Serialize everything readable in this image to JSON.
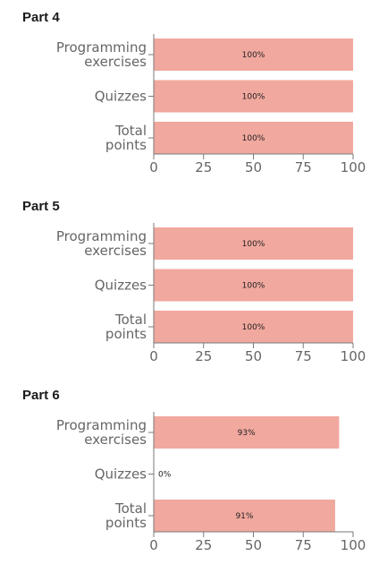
{
  "colors": {
    "bar": "#f1a89e",
    "axis": "#7a7a7a",
    "label": "#666666"
  },
  "chart_data": [
    {
      "type": "bar",
      "orientation": "horizontal",
      "title": "Part 4",
      "categories": [
        "Programming exercises",
        "Quizzes",
        "Total points"
      ],
      "values": [
        100,
        100,
        100
      ],
      "value_labels": [
        "100%",
        "100%",
        "100%"
      ],
      "xlim": [
        0,
        100
      ],
      "xticks": [
        "0",
        "25",
        "50",
        "75",
        "100"
      ],
      "xlabel": "",
      "ylabel": "",
      "grid": false
    },
    {
      "type": "bar",
      "orientation": "horizontal",
      "title": "Part 5",
      "categories": [
        "Programming exercises",
        "Quizzes",
        "Total points"
      ],
      "values": [
        100,
        100,
        100
      ],
      "value_labels": [
        "100%",
        "100%",
        "100%"
      ],
      "xlim": [
        0,
        100
      ],
      "xticks": [
        "0",
        "25",
        "50",
        "75",
        "100"
      ],
      "xlabel": "",
      "ylabel": "",
      "grid": false
    },
    {
      "type": "bar",
      "orientation": "horizontal",
      "title": "Part 6",
      "categories": [
        "Programming exercises",
        "Quizzes",
        "Total points"
      ],
      "values": [
        93,
        0,
        91
      ],
      "value_labels": [
        "93%",
        "0%",
        "91%"
      ],
      "xlim": [
        0,
        100
      ],
      "xticks": [
        "0",
        "25",
        "50",
        "75",
        "100"
      ],
      "xlabel": "",
      "ylabel": "",
      "grid": false
    }
  ]
}
